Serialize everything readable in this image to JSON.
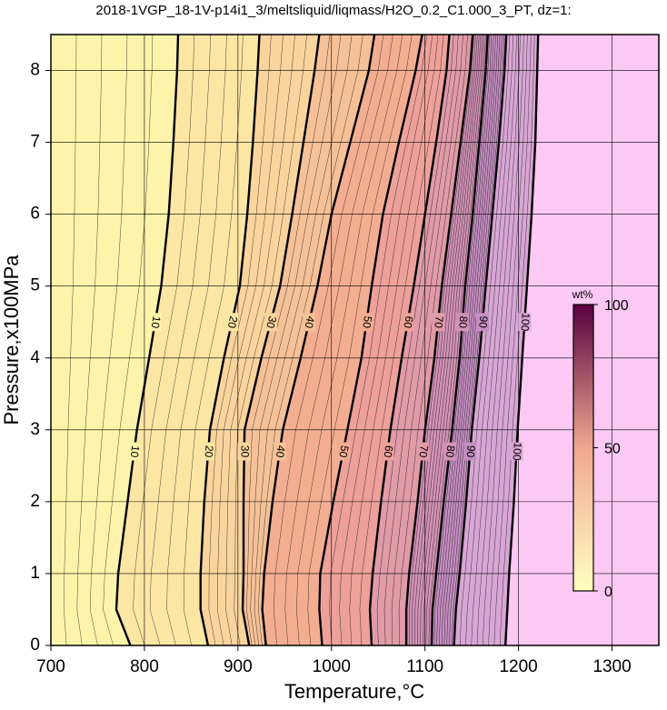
{
  "chart_data": {
    "type": "contour",
    "title": "2018-1VGP_18-1V-p14i1_3/meltsliquid/liqmass/H2O_0.2_C1.000_3_PT, dz=1:",
    "xlabel": "Temperature,°C",
    "ylabel": "Pressure,x100MPa",
    "xlim": [
      700,
      1350
    ],
    "ylim": [
      0,
      8.5
    ],
    "xticks": [
      700,
      800,
      900,
      1000,
      1100,
      1200,
      1300
    ],
    "yticks": [
      0,
      1,
      2,
      3,
      4,
      5,
      6,
      7,
      8
    ],
    "grid": true,
    "pressures": [
      0,
      0.5,
      1,
      2,
      3,
      4,
      5,
      6,
      7,
      8,
      8.5
    ],
    "contours": [
      {
        "level": 10,
        "values": [
          785,
          770,
          772,
          782,
          792,
          805,
          818,
          826,
          831,
          835,
          836
        ]
      },
      {
        "level": 20,
        "values": [
          868,
          860,
          860,
          864,
          870,
          885,
          902,
          910,
          916,
          921,
          923
        ]
      },
      {
        "level": 30,
        "values": [
          912,
          905,
          906,
          906,
          907,
          925,
          945,
          958,
          970,
          982,
          987
        ]
      },
      {
        "level": 40,
        "values": [
          930,
          926,
          928,
          937,
          948,
          967,
          985,
          1000,
          1020,
          1040,
          1046
        ]
      },
      {
        "level": 50,
        "values": [
          990,
          987,
          988,
          1002,
          1017,
          1032,
          1043,
          1055,
          1072,
          1090,
          1097
        ]
      },
      {
        "level": 60,
        "values": [
          1043,
          1041,
          1044,
          1053,
          1063,
          1075,
          1088,
          1100,
          1112,
          1123,
          1126
        ]
      },
      {
        "level": 70,
        "values": [
          1080,
          1080,
          1083,
          1092,
          1100,
          1110,
          1118,
          1128,
          1138,
          1148,
          1151
        ]
      },
      {
        "level": 80,
        "values": [
          1107,
          1108,
          1112,
          1120,
          1129,
          1137,
          1143,
          1151,
          1158,
          1165,
          1167
        ]
      },
      {
        "level": 90,
        "values": [
          1131,
          1133,
          1137,
          1144,
          1150,
          1158,
          1165,
          1172,
          1179,
          1185,
          1187
        ]
      },
      {
        "level": 100,
        "values": [
          1186,
          1188,
          1190,
          1195,
          1199,
          1204,
          1209,
          1214,
          1218,
          1220,
          1221
        ]
      }
    ],
    "band_colors": [
      "#fdf3aa",
      "#fbe6a4",
      "#f9d49d",
      "#f6c197",
      "#f3ae92",
      "#eda19a",
      "#e09aa8",
      "#d192b4",
      "#c58ec0",
      "#d8a6d4",
      "#fcc8f4"
    ],
    "colorbar": {
      "label": "wt%",
      "lim": [
        0,
        100
      ],
      "ticks": [
        0,
        50,
        100
      ],
      "colors": [
        "#ffffc0",
        "#f0a890",
        "#5a0040"
      ]
    }
  }
}
